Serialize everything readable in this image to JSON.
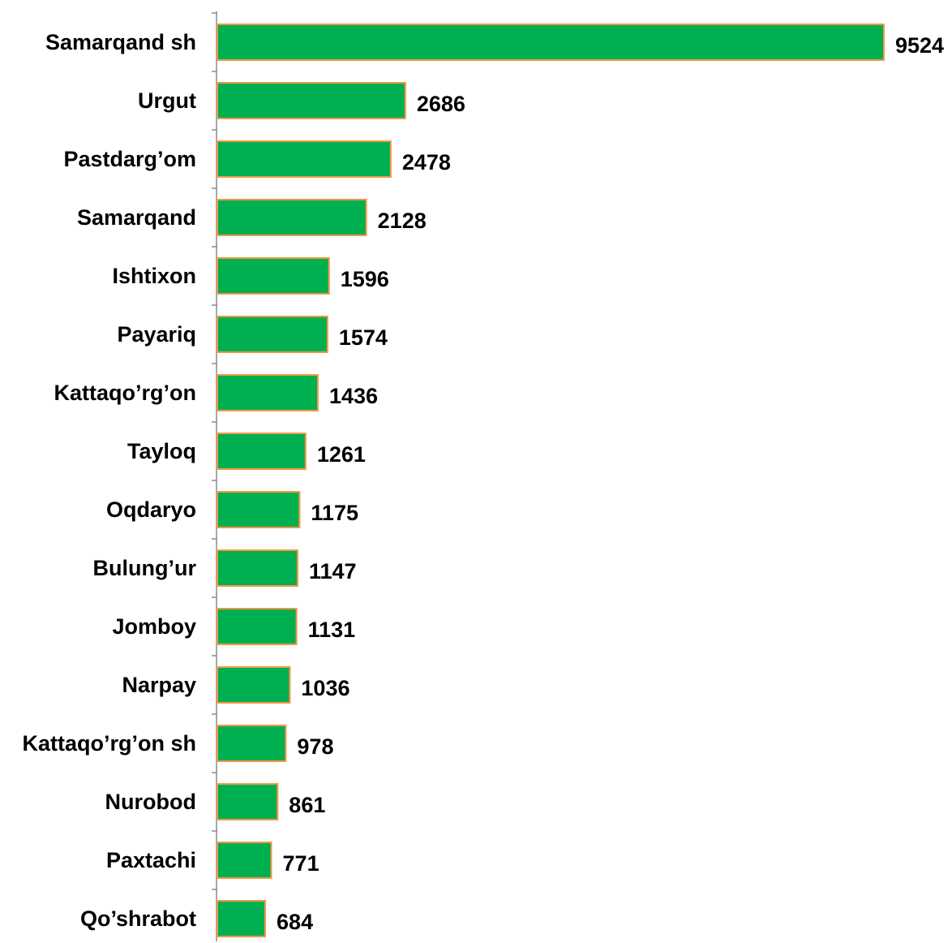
{
  "chart_data": {
    "type": "bar",
    "orientation": "horizontal",
    "categories": [
      "Samarqand sh",
      "Urgut",
      "Pastdarg’om",
      "Samarqand",
      "Ishtixon",
      "Payariq",
      "Kattaqo’rg’on",
      "Tayloq",
      "Oqdaryo",
      "Bulung’ur",
      "Jomboy",
      "Narpay",
      "Kattaqo’rg’on sh",
      "Nurobod",
      "Paxtachi",
      "Qo’shrabot"
    ],
    "values": [
      9524,
      2686,
      2478,
      2128,
      1596,
      1574,
      1436,
      1261,
      1175,
      1147,
      1131,
      1036,
      978,
      861,
      771,
      684
    ],
    "data_labels": true,
    "title": "",
    "xlabel": "",
    "ylabel": "",
    "xlim": [
      0,
      9524
    ],
    "grid": false,
    "legend": "none",
    "colors": {
      "bar_fill": "#00B050",
      "bar_border": "#F79646",
      "axis": "#8c8c8c"
    }
  }
}
